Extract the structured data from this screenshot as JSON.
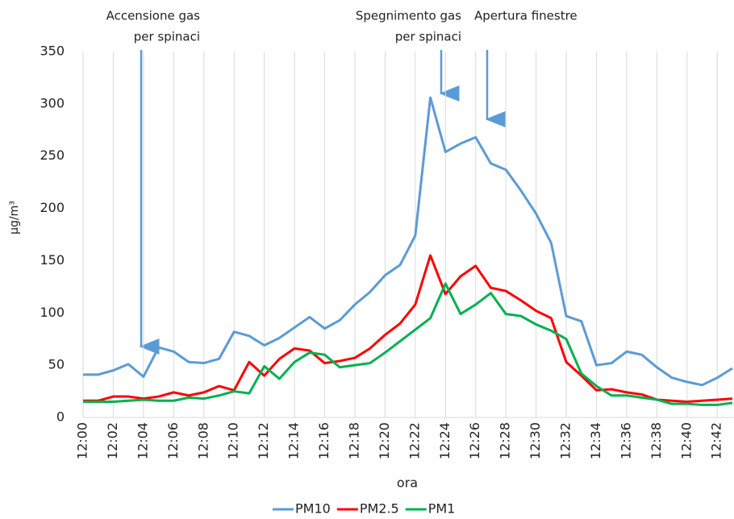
{
  "chart_data": {
    "type": "line",
    "y_label": "µg/m³",
    "x_label": "ora",
    "annotations": [
      "Accensione gas",
      "per spinaci",
      "Spegnimento gas",
      "per spinaci",
      "Apertura finestre"
    ],
    "categories": [
      "12:00",
      null,
      "12:02",
      null,
      "12:04",
      null,
      "12:06",
      null,
      "12:08",
      null,
      "12:10",
      null,
      "12:12",
      null,
      "12:14",
      null,
      "12:16",
      null,
      "12:18",
      null,
      "12:20",
      null,
      "12:22",
      null,
      "12:24",
      null,
      "12:26",
      null,
      "12:28",
      null,
      "12:30",
      null,
      "12:32",
      null,
      "12:34",
      null,
      "12:36",
      null,
      "12:38",
      null,
      "12:40",
      null,
      "12:42",
      null
    ],
    "series": [
      {
        "name": "PM10",
        "color": "#5b9bd5",
        "values": [
          41,
          41,
          45,
          51,
          39,
          67,
          63,
          53,
          52,
          56,
          82,
          78,
          69,
          76,
          86,
          96,
          85,
          93,
          108,
          120,
          136,
          146,
          174,
          306,
          254,
          262,
          268,
          243,
          237,
          217,
          195,
          167,
          97,
          92,
          50,
          52,
          63,
          60,
          48,
          38,
          34,
          31,
          38,
          47
        ]
      },
      {
        "name": "PM2.5",
        "color": "#ff0000",
        "values": [
          16,
          16,
          20,
          20,
          18,
          20,
          24,
          21,
          24,
          30,
          26,
          53,
          40,
          56,
          66,
          64,
          52,
          54,
          57,
          66,
          79,
          90,
          108,
          155,
          118,
          135,
          145,
          124,
          121,
          112,
          102,
          95,
          53,
          40,
          26,
          27,
          24,
          22,
          17,
          16,
          15,
          16,
          17,
          18
        ]
      },
      {
        "name": "PM1",
        "color": "#00b050",
        "values": [
          15,
          15,
          15,
          16,
          17,
          16,
          16,
          19,
          18,
          21,
          25,
          23,
          49,
          37,
          53,
          62,
          60,
          48,
          50,
          52,
          62,
          73,
          84,
          95,
          128,
          99,
          108,
          119,
          99,
          97,
          89,
          83,
          75,
          42,
          30,
          21,
          21,
          19,
          17,
          13,
          13,
          12,
          12,
          14
        ]
      }
    ],
    "ylim": [
      0,
      350
    ],
    "yticks": [
      0,
      50,
      100,
      150,
      200,
      250,
      300,
      350
    ],
    "grid": true
  }
}
